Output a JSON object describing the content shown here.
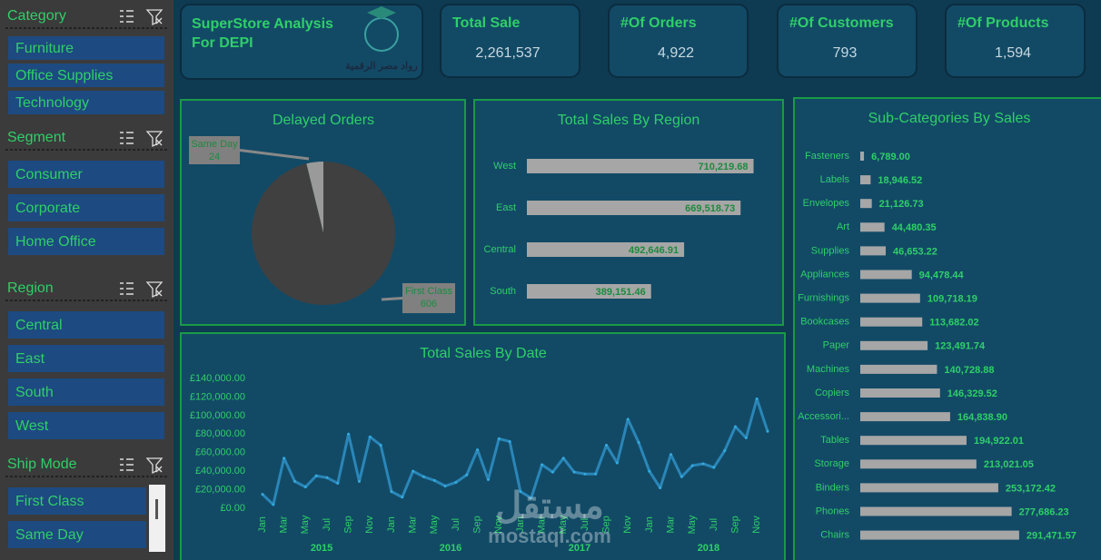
{
  "header": {
    "title_lines": [
      "SuperStore Analysis",
      "For DEPI"
    ],
    "logo_text": "رواد مصر الرقمية"
  },
  "kpis": [
    {
      "label": "Total Sale",
      "value": "2,261,537"
    },
    {
      "label": "#Of Orders",
      "value": "4,922"
    },
    {
      "label": "#Of  Customers",
      "value": "793"
    },
    {
      "label": "#Of Products",
      "value": "1,594"
    }
  ],
  "slicers": [
    {
      "title": "Category",
      "items": [
        "Furniture",
        "Office Supplies",
        "Technology"
      ]
    },
    {
      "title": "Segment",
      "items": [
        "Consumer",
        "Corporate",
        "Home Office"
      ]
    },
    {
      "title": "Region",
      "items": [
        "Central",
        "East",
        "South",
        "West"
      ]
    },
    {
      "title": "Ship Mode",
      "items": [
        "First Class",
        "Same Day"
      ]
    }
  ],
  "watermark": {
    "arabic": "مستقل",
    "latin": "mostaql.com"
  },
  "chart_data": [
    {
      "type": "pie",
      "title": "Delayed Orders",
      "categories": [
        "Same Day",
        "First Class"
      ],
      "values": [
        24,
        606
      ],
      "colors": [
        "#9a9a9a",
        "#404040"
      ]
    },
    {
      "type": "bar",
      "orientation": "horizontal",
      "title": "Total Sales By Region",
      "categories": [
        "West",
        "East",
        "Central",
        "South"
      ],
      "values": [
        710219.68,
        669518.73,
        492646.91,
        389151.46
      ],
      "value_labels": [
        "710,219.68",
        "669,518.73",
        "492,646.91",
        "389,151.46"
      ],
      "color": "#a6a6a6",
      "xlim": [
        0,
        740000
      ]
    },
    {
      "type": "bar",
      "orientation": "horizontal",
      "title": "Sub-Categories By Sales",
      "categories": [
        "Fasteners",
        "Labels",
        "Envelopes",
        "Art",
        "Supplies",
        "Appliances",
        "Furnishings",
        "Bookcases",
        "Paper",
        "Machines",
        "Copiers",
        "Accessori...",
        "Tables",
        "Storage",
        "Binders",
        "Phones",
        "Chairs"
      ],
      "values": [
        6789,
        18946.52,
        21126.73,
        44480.35,
        46653.22,
        94478.44,
        109718.19,
        113682.02,
        123491.74,
        140728.88,
        146329.52,
        164838.9,
        194922.01,
        213021.05,
        253172.42,
        277686.23,
        291471.57
      ],
      "value_labels": [
        "6,789.00",
        "18,946.52",
        "21,126.73",
        "44,480.35",
        "46,653.22",
        "94,478.44",
        "109,718.19",
        "113,682.02",
        "123,491.74",
        "140,728.88",
        "146,329.52",
        "164,838.90",
        "194,922.01",
        "213,021.05",
        "253,172.42",
        "277,686.23",
        "291,471.57"
      ],
      "color": "#a6a6a6",
      "xlim": [
        0,
        300000
      ]
    },
    {
      "type": "line",
      "title": "Total Sales By Date",
      "categories": [
        "Jan",
        null,
        "Mar",
        null,
        "May",
        null,
        "Jul",
        null,
        "Sep",
        null,
        "Nov",
        null,
        "Jan",
        null,
        "Mar",
        null,
        "May",
        null,
        "Jul",
        null,
        "Sep",
        null,
        "Nov",
        null,
        "Jan",
        null,
        "Mar",
        null,
        "May",
        null,
        "Jul",
        null,
        "Sep",
        null,
        "Nov",
        null,
        "Jan",
        null,
        "Mar",
        null,
        "May",
        null,
        "Jul",
        null,
        "Sep",
        null,
        "Nov",
        null
      ],
      "groups": [
        "2015",
        "2016",
        "2017",
        "2018"
      ],
      "values": [
        15000,
        4000,
        54000,
        29000,
        23000,
        35000,
        33000,
        27000,
        80000,
        29000,
        77000,
        68000,
        18000,
        12000,
        40000,
        34000,
        30000,
        24000,
        28000,
        36000,
        63000,
        31000,
        75000,
        72000,
        18000,
        11000,
        47000,
        39000,
        54000,
        39000,
        37000,
        37000,
        68000,
        49000,
        96000,
        71000,
        40000,
        22000,
        58000,
        34000,
        46000,
        48000,
        44000,
        62000,
        88000,
        76000,
        118000,
        83000
      ],
      "color": "#2a86b8",
      "ylim": [
        0,
        140000
      ],
      "yticks": [
        {
          "value": 0,
          "label": "£0.00"
        },
        {
          "value": 20000,
          "label": "£20,000.00"
        },
        {
          "value": 40000,
          "label": "£40,000.00"
        },
        {
          "value": 60000,
          "label": "£60,000.00"
        },
        {
          "value": 80000,
          "label": "£80,000.00"
        },
        {
          "value": 100000,
          "label": "£100,000.00"
        },
        {
          "value": 120000,
          "label": "£120,000.00"
        },
        {
          "value": 140000,
          "label": "£140,000.00"
        }
      ]
    }
  ]
}
